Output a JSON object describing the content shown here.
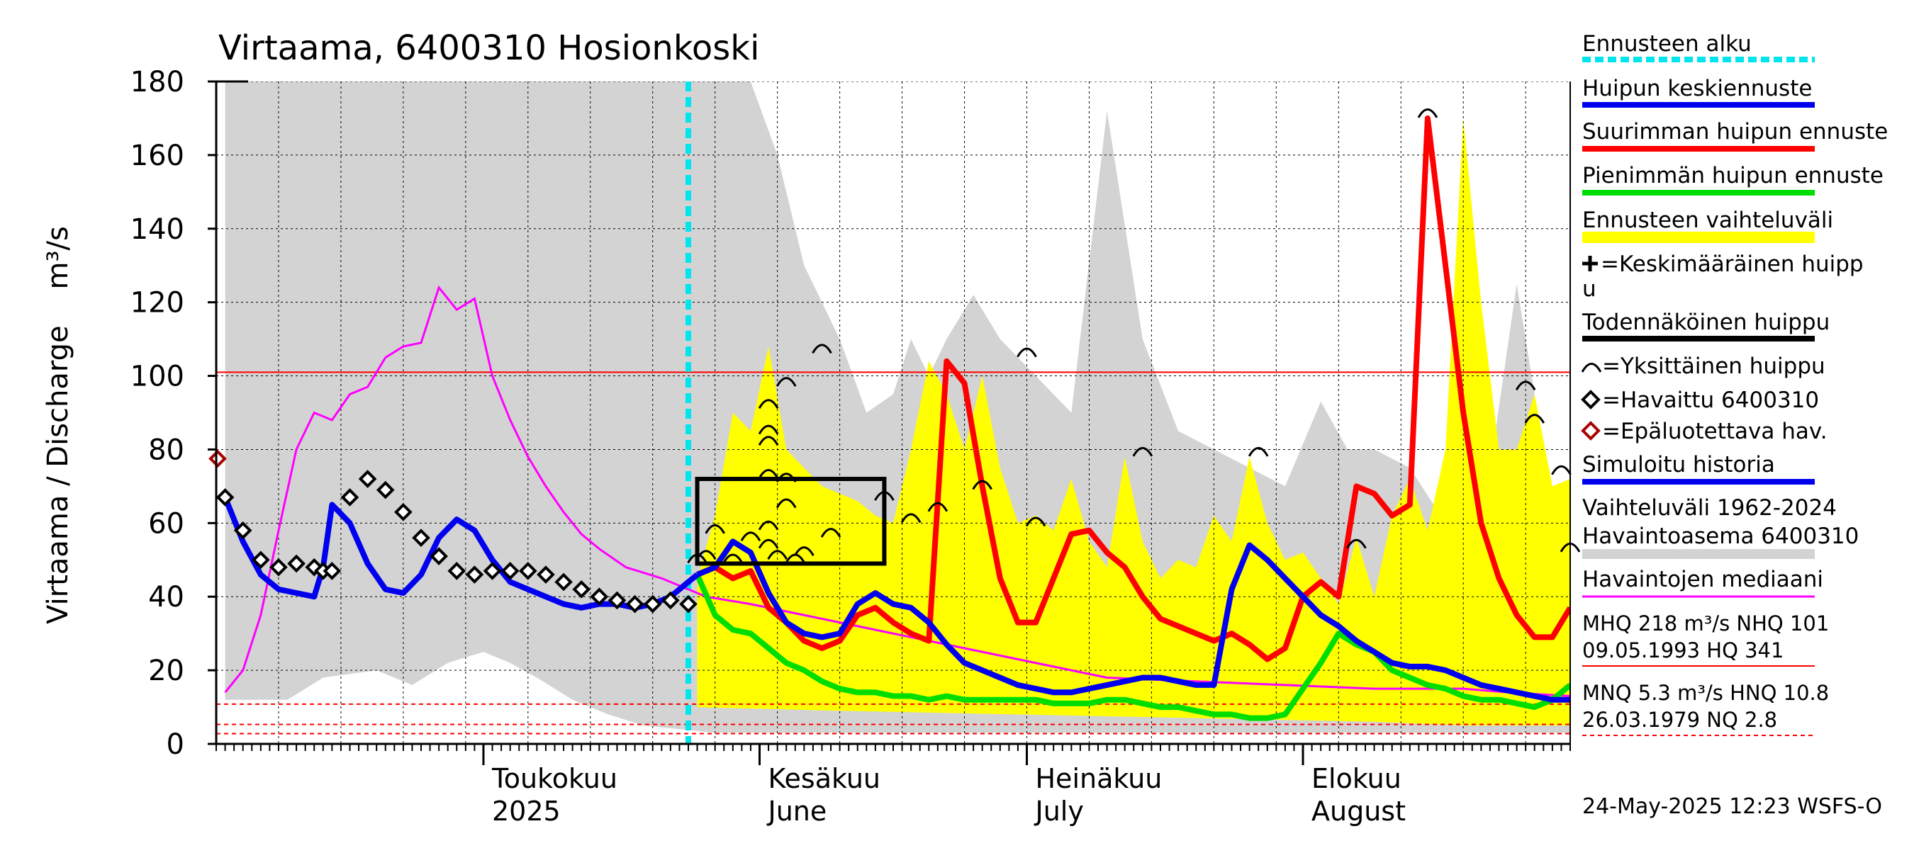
{
  "chart_data": {
    "type": "line",
    "title": "Virtaama, 6400310 Hosionkoski",
    "ylabel": "Virtaama / Discharge    m³/s",
    "ylim": [
      0,
      180
    ],
    "yticks": [
      0,
      20,
      40,
      60,
      80,
      100,
      120,
      140,
      160,
      180
    ],
    "xlim": [
      "2025-04-01",
      "2025-08-31"
    ],
    "month_labels": [
      {
        "date": "2025-05-01",
        "fi": "Toukokuu",
        "en": "2025"
      },
      {
        "date": "2025-06-01",
        "fi": "Kesäkuu",
        "en": "June"
      },
      {
        "date": "2025-07-01",
        "fi": "Heinäkuu",
        "en": "July"
      },
      {
        "date": "2025-08-01",
        "fi": "Elokuu",
        "en": "August"
      }
    ],
    "forecast_start": "2025-05-24",
    "timestamp": "24-May-2025 12:23 WSFS-O",
    "colors": {
      "forecast_start": "#00e5ee",
      "mean_forecast": "#0000ee",
      "max_forecast": "#ff0000",
      "min_forecast": "#00dd00",
      "forecast_range": "#ffff00",
      "historical_range": "#d3d3d3",
      "median": "#ff00ff",
      "observed": "#000000",
      "unreliable": "#aa0000",
      "reference_lines": "#ff0000"
    },
    "reference_lines": [
      {
        "name": "NHQ",
        "value": 101,
        "style": "solid"
      },
      {
        "name": "HNQ",
        "value": 10.8,
        "style": "dashed"
      },
      {
        "name": "MNQ",
        "value": 5.3,
        "style": "dashed"
      },
      {
        "name": "NQ",
        "value": 2.8,
        "style": "dashed"
      }
    ],
    "series": [
      {
        "key": "hist_upper",
        "x": [
          1,
          8,
          12,
          18,
          22,
          26,
          30,
          33,
          36,
          40,
          44,
          48,
          52,
          56,
          60,
          63,
          66,
          70,
          73,
          76,
          78,
          80,
          82,
          85,
          88,
          92,
          96,
          100,
          104,
          108,
          112,
          116,
          120,
          124,
          127,
          130,
          134,
          138,
          142,
          146,
          150,
          152
        ],
        "values": [
          180,
          180,
          180,
          180,
          180,
          180,
          180,
          180,
          180,
          180,
          180,
          180,
          180,
          180,
          180,
          160,
          130,
          110,
          90,
          95,
          110,
          100,
          110,
          122,
          110,
          100,
          90,
          172,
          110,
          85,
          80,
          75,
          70,
          93,
          80,
          80,
          75,
          60,
          58,
          125,
          65,
          63
        ]
      },
      {
        "key": "hist_lower",
        "x": [
          1,
          8,
          12,
          18,
          22,
          26,
          30,
          33,
          36,
          40,
          44,
          48,
          52,
          56,
          60,
          63,
          66,
          70,
          73,
          76,
          78,
          80,
          82,
          85,
          88,
          92,
          96,
          100,
          104,
          108,
          112,
          116,
          120,
          124,
          127,
          130,
          134,
          138,
          142,
          146,
          150,
          152
        ],
        "values": [
          12,
          12,
          18,
          20,
          16,
          22,
          25,
          22,
          18,
          12,
          8,
          5,
          4,
          3,
          3,
          3,
          3,
          3,
          3,
          3,
          3,
          3,
          3,
          3,
          3,
          3,
          3,
          3,
          3,
          3,
          3,
          3,
          3,
          3,
          3,
          3,
          3,
          3,
          3,
          3,
          3,
          3
        ]
      },
      {
        "key": "range_upper",
        "x": [
          54,
          56,
          58,
          60,
          62,
          64,
          66,
          68,
          70,
          72,
          74,
          76,
          78,
          80,
          82,
          84,
          86,
          88,
          90,
          92,
          94,
          96,
          98,
          100,
          102,
          104,
          106,
          108,
          110,
          112,
          114,
          116,
          118,
          120,
          122,
          124,
          126,
          128,
          130,
          132,
          134,
          136,
          138,
          140,
          142,
          144,
          146,
          148,
          150,
          152
        ],
        "values": [
          45,
          62,
          90,
          85,
          108,
          80,
          75,
          70,
          68,
          66,
          62,
          60,
          80,
          104,
          95,
          80,
          100,
          75,
          60,
          62,
          58,
          72,
          55,
          48,
          78,
          55,
          45,
          50,
          48,
          62,
          55,
          78,
          60,
          50,
          52,
          45,
          38,
          56,
          40,
          62,
          72,
          58,
          80,
          170,
          120,
          80,
          80,
          95,
          70,
          72
        ]
      },
      {
        "key": "range_lower",
        "x": [
          54,
          70,
          90,
          110,
          130,
          140,
          152
        ],
        "values": [
          10,
          9,
          8,
          7,
          6,
          5,
          5
        ]
      },
      {
        "key": "median",
        "name": "Havaintojen mediaani",
        "x": [
          1,
          3,
          5,
          7,
          9,
          11,
          13,
          15,
          17,
          19,
          21,
          23,
          25,
          27,
          29,
          31,
          33,
          35,
          37,
          39,
          41,
          43,
          46,
          50,
          55,
          60,
          70,
          80,
          90,
          100,
          110,
          120,
          130,
          140,
          145,
          152
        ],
        "values": [
          14,
          20,
          35,
          58,
          80,
          90,
          88,
          95,
          97,
          105,
          108,
          109,
          124,
          118,
          121,
          100,
          88,
          78,
          70,
          63,
          57,
          53,
          48,
          45,
          40,
          38,
          33,
          28,
          23,
          18,
          17,
          16,
          15,
          15,
          14,
          13
        ]
      },
      {
        "key": "max_forecast",
        "name": "Suurimman huipun ennuste",
        "x": [
          54,
          56,
          58,
          60,
          62,
          64,
          66,
          68,
          70,
          72,
          74,
          76,
          78,
          80,
          82,
          84,
          86,
          88,
          90,
          92,
          94,
          96,
          98,
          100,
          102,
          104,
          106,
          108,
          110,
          112,
          114,
          116,
          118,
          120,
          122,
          124,
          126,
          128,
          130,
          132,
          134,
          136,
          138,
          140,
          142,
          144,
          146,
          148,
          150,
          152
        ],
        "values": [
          46,
          48,
          45,
          47,
          37,
          33,
          28,
          26,
          28,
          35,
          37,
          33,
          30,
          28,
          104,
          98,
          70,
          45,
          33,
          33,
          45,
          57,
          58,
          52,
          48,
          40,
          34,
          32,
          30,
          28,
          30,
          27,
          23,
          26,
          40,
          44,
          40,
          70,
          68,
          62,
          65,
          170,
          130,
          90,
          60,
          45,
          35,
          29,
          29,
          37
        ]
      },
      {
        "key": "min_forecast",
        "name": "Pienimmän huipun ennuste",
        "x": [
          54,
          56,
          58,
          60,
          62,
          64,
          66,
          68,
          70,
          72,
          74,
          76,
          78,
          80,
          82,
          84,
          86,
          88,
          90,
          92,
          94,
          96,
          98,
          100,
          102,
          104,
          106,
          108,
          110,
          112,
          114,
          116,
          118,
          120,
          122,
          124,
          126,
          128,
          130,
          132,
          134,
          136,
          138,
          140,
          142,
          144,
          146,
          148,
          150,
          152
        ],
        "values": [
          46,
          35,
          31,
          30,
          26,
          22,
          20,
          17,
          15,
          14,
          14,
          13,
          13,
          12,
          13,
          12,
          12,
          12,
          12,
          12,
          11,
          11,
          11,
          12,
          12,
          11,
          10,
          10,
          9,
          8,
          8,
          7,
          7,
          8,
          15,
          22,
          30,
          27,
          25,
          20,
          18,
          16,
          15,
          13,
          12,
          12,
          11,
          10,
          12,
          16
        ]
      },
      {
        "key": "mean_forecast",
        "name": "Huipun keskiennuste",
        "x": [
          54,
          56,
          58,
          60,
          62,
          64,
          66,
          68,
          70,
          72,
          74,
          76,
          78,
          80,
          82,
          84,
          86,
          88,
          90,
          92,
          94,
          96,
          98,
          100,
          102,
          104,
          106,
          108,
          110,
          112,
          114,
          116,
          118,
          120,
          122,
          124,
          126,
          128,
          130,
          132,
          134,
          136,
          138,
          140,
          142,
          144,
          146,
          148,
          150,
          152
        ],
        "values": [
          46,
          48,
          55,
          52,
          41,
          33,
          30,
          29,
          30,
          38,
          41,
          38,
          37,
          33,
          27,
          22,
          20,
          18,
          16,
          15,
          14,
          14,
          15,
          16,
          17,
          18,
          18,
          17,
          16,
          16,
          42,
          54,
          50,
          45,
          40,
          35,
          32,
          28,
          25,
          22,
          21,
          21,
          20,
          18,
          16,
          15,
          14,
          13,
          12,
          12
        ]
      },
      {
        "key": "simulated",
        "name": "Simuloitu historia",
        "x": [
          1,
          3,
          5,
          7,
          9,
          11,
          12,
          13,
          15,
          17,
          19,
          21,
          23,
          25,
          27,
          29,
          31,
          33,
          35,
          37,
          39,
          41,
          43,
          45,
          47,
          49,
          51,
          53,
          54
        ],
        "values": [
          67,
          55,
          46,
          42,
          41,
          40,
          48,
          65,
          60,
          49,
          42,
          41,
          46,
          56,
          61,
          58,
          50,
          44,
          42,
          40,
          38,
          37,
          38,
          38,
          37,
          38,
          40,
          44,
          46
        ]
      },
      {
        "key": "observed",
        "name": "Havaittu 6400310",
        "x": [
          1,
          3,
          5,
          7,
          9,
          11,
          12,
          13,
          15,
          17,
          19,
          21,
          23,
          25,
          27,
          29,
          31,
          33,
          35,
          37,
          39,
          41,
          43,
          45,
          47,
          49,
          51,
          53
        ],
        "values": [
          67,
          58,
          50,
          48,
          49,
          48,
          47,
          47,
          67,
          72,
          69,
          63,
          56,
          51,
          47,
          46,
          47,
          47,
          47,
          46,
          44,
          42,
          40,
          39,
          38,
          38,
          39,
          38
        ]
      }
    ],
    "unreliable_points": [
      {
        "x": 0,
        "value": 77.5
      }
    ],
    "peak_forecast_band": {
      "x_start": 54,
      "x_end": 75,
      "y_low": 49,
      "y_high": 72
    },
    "single_peaks": [
      {
        "x": 54,
        "value": 49
      },
      {
        "x": 55,
        "value": 50
      },
      {
        "x": 56,
        "value": 57
      },
      {
        "x": 58,
        "value": 49
      },
      {
        "x": 60,
        "value": 55
      },
      {
        "x": 62,
        "value": 91
      },
      {
        "x": 62,
        "value": 84
      },
      {
        "x": 62,
        "value": 81
      },
      {
        "x": 62,
        "value": 72
      },
      {
        "x": 62,
        "value": 58
      },
      {
        "x": 62,
        "value": 53
      },
      {
        "x": 63,
        "value": 50
      },
      {
        "x": 64,
        "value": 97
      },
      {
        "x": 64,
        "value": 71
      },
      {
        "x": 64,
        "value": 64
      },
      {
        "x": 65,
        "value": 49
      },
      {
        "x": 66,
        "value": 51
      },
      {
        "x": 68,
        "value": 106
      },
      {
        "x": 69,
        "value": 56
      },
      {
        "x": 75,
        "value": 66
      },
      {
        "x": 78,
        "value": 60
      },
      {
        "x": 81,
        "value": 63
      },
      {
        "x": 86,
        "value": 69
      },
      {
        "x": 91,
        "value": 105
      },
      {
        "x": 92,
        "value": 59
      },
      {
        "x": 104,
        "value": 78
      },
      {
        "x": 117,
        "value": 78
      },
      {
        "x": 128,
        "value": 53
      },
      {
        "x": 136,
        "value": 170
      },
      {
        "x": 147,
        "value": 96
      },
      {
        "x": 148,
        "value": 87
      },
      {
        "x": 151,
        "value": 73
      },
      {
        "x": 152,
        "value": 52
      }
    ]
  },
  "legend": {
    "forecast_start": "Ennusteen alku",
    "mean_forecast": "Huipun keskiennuste",
    "max_forecast": "Suurimman huipun ennuste",
    "min_forecast": "Pienimmän huipun ennuste",
    "forecast_range": "Ennusteen vaihteluväli",
    "avg_peak_1": "=Keskimääräinen huipp",
    "avg_peak_2": "u",
    "likely_peak": "Todennäköinen huippu",
    "single_peak": "=Yksittäinen huippu",
    "observed": "=Havaittu 6400310",
    "unreliable": "=Epäluotettava hav.",
    "simulated": "Simuloitu historia",
    "hist_range_1": "Vaihteluväli 1962-2024",
    "hist_range_2": " Havaintoasema 6400310",
    "median": "Havaintojen mediaani",
    "stats_high_1": "MHQ  218 m³/s NHQ  101",
    "stats_high_2": "09.05.1993 HQ  341",
    "stats_low_1": "MNQ  5.3 m³/s HNQ 10.8",
    "stats_low_2": "26.03.1979 NQ  2.8"
  }
}
